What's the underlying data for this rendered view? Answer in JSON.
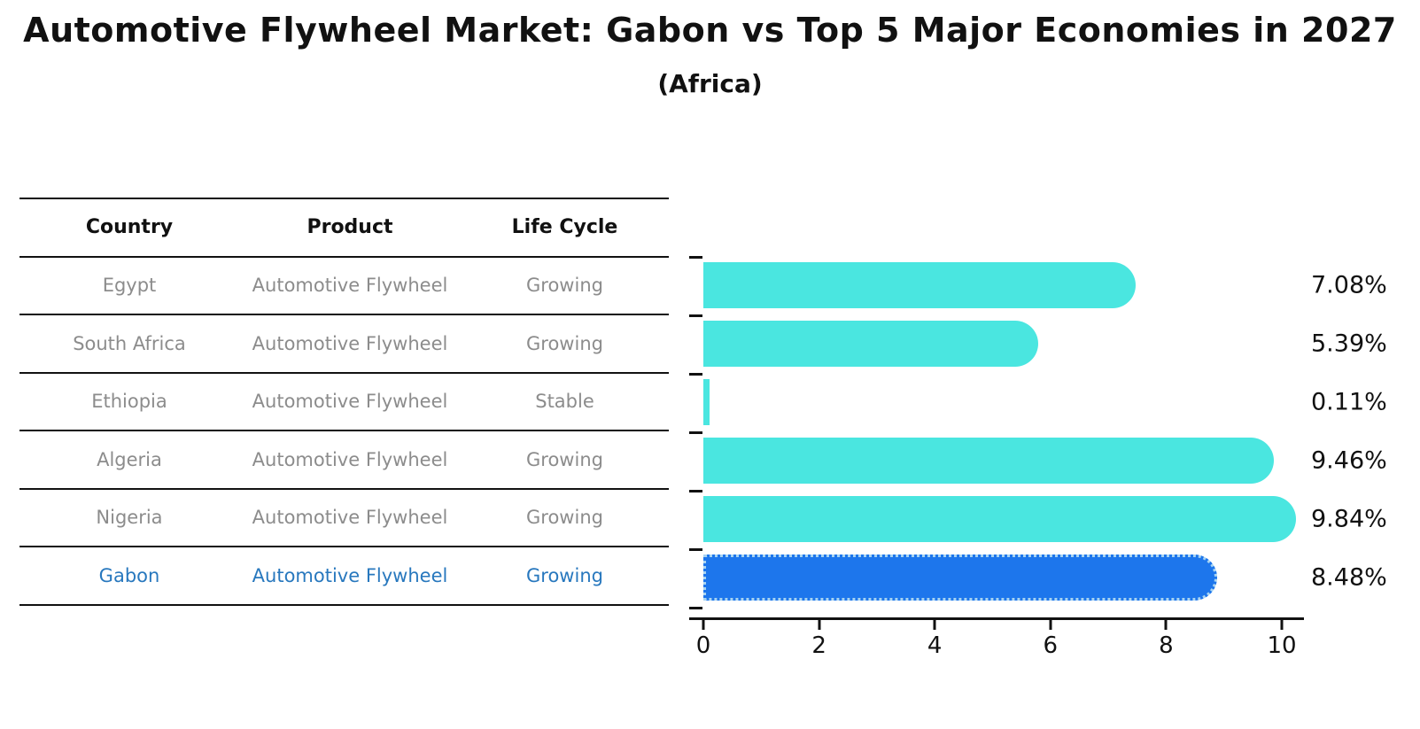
{
  "title": "Automotive Flywheel Market: Gabon vs Top 5 Major Economies in 2027",
  "subtitle": "(Africa)",
  "table": {
    "headers": [
      "Country",
      "Product",
      "Life Cycle"
    ],
    "rows": [
      {
        "country": "Egypt",
        "product": "Automotive Flywheel",
        "life_cycle": "Growing",
        "highlight": false
      },
      {
        "country": "South Africa",
        "product": "Automotive Flywheel",
        "life_cycle": "Growing",
        "highlight": false
      },
      {
        "country": "Ethiopia",
        "product": "Automotive Flywheel",
        "life_cycle": "Stable",
        "highlight": false
      },
      {
        "country": "Algeria",
        "product": "Automotive Flywheel",
        "life_cycle": "Growing",
        "highlight": false
      },
      {
        "country": "Nigeria",
        "product": "Automotive Flywheel",
        "life_cycle": "Growing",
        "highlight": false
      },
      {
        "country": "Gabon",
        "product": "Automotive Flywheel",
        "life_cycle": "Growing",
        "highlight": true
      }
    ]
  },
  "chart_data": {
    "type": "bar",
    "orientation": "horizontal",
    "title": "Automotive Flywheel Market: Gabon vs Top 5 Major Economies in 2027 (Africa)",
    "categories": [
      "Egypt",
      "South Africa",
      "Ethiopia",
      "Algeria",
      "Nigeria",
      "Gabon"
    ],
    "values": [
      7.08,
      5.39,
      0.11,
      9.46,
      9.84,
      8.48
    ],
    "value_labels": [
      "7.08%",
      "5.39%",
      "0.11%",
      "9.46%",
      "9.84%",
      "8.48%"
    ],
    "unit": "percent",
    "xlim": [
      0,
      10.35
    ],
    "xticks": [
      0,
      2,
      4,
      6,
      8,
      10
    ],
    "grid": false,
    "legend": false,
    "highlight_category": "Gabon",
    "highlight_index": 5
  },
  "colors": {
    "background": "#ffffff",
    "bar": "#4ae6e0",
    "highlight_bar": "#1d76ec",
    "highlight_bar_edge": "#a8d4f2",
    "highlight_text": "#2878be",
    "table_text": "#8c8c8c",
    "heading_text": "#111111",
    "axis": "#111111"
  }
}
